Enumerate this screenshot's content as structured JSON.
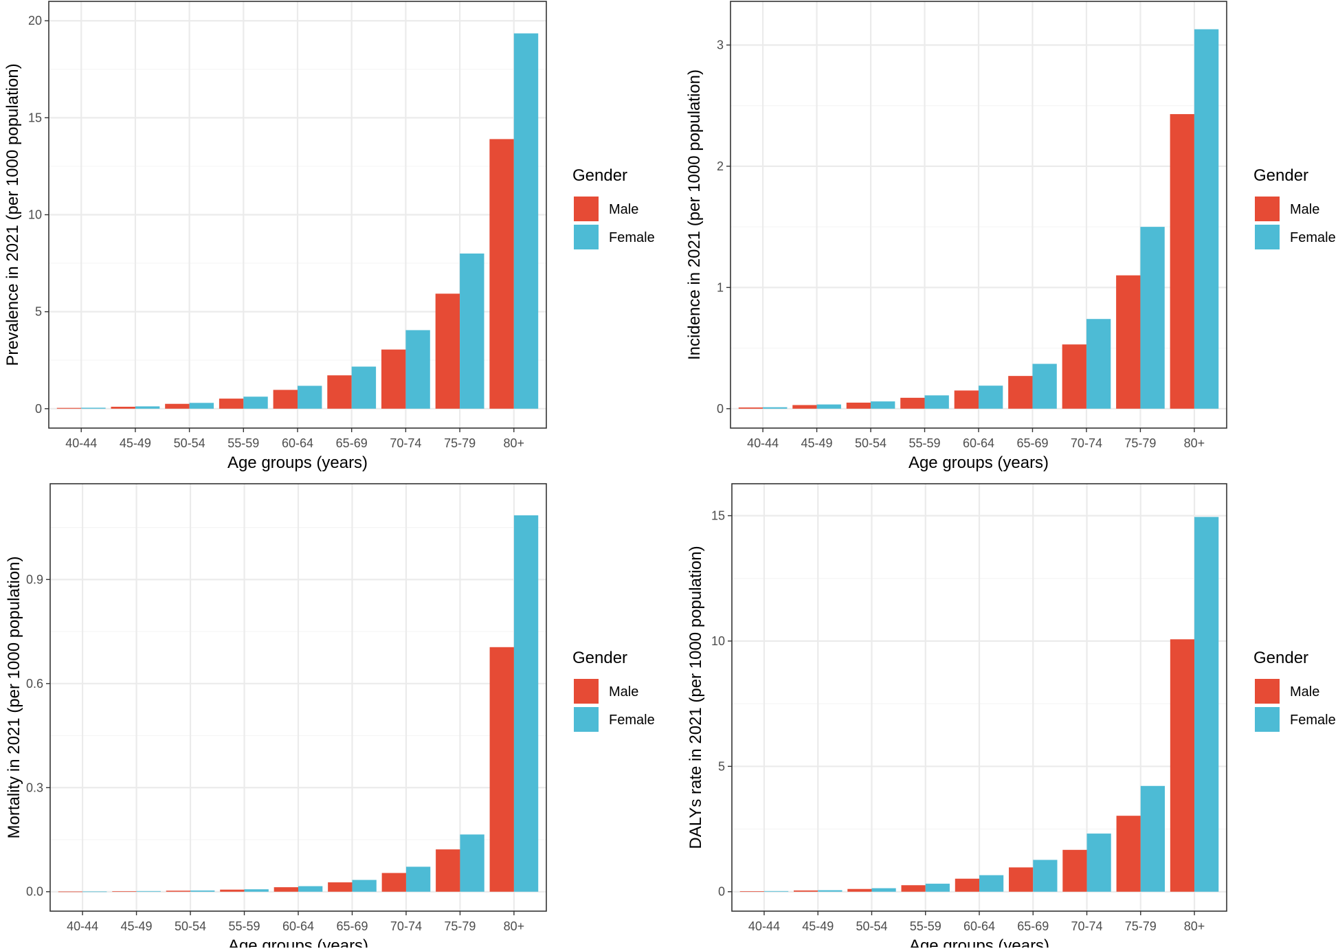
{
  "legend": {
    "title": "Gender",
    "entries": [
      "Male",
      "Female"
    ]
  },
  "colors": {
    "male": "#E64B35",
    "female": "#4DBBD5",
    "grid_major": "#EBEBEB",
    "grid_minor": "#F5F5F5",
    "panel_border": "#333333"
  },
  "chart_data": [
    {
      "type": "bar",
      "xlabel": "Age groups (years)",
      "ylabel": "Prevalence in 2021 (per 1000 population)",
      "categories": [
        "40-44",
        "45-49",
        "50-54",
        "55-59",
        "60-64",
        "65-69",
        "70-74",
        "75-79",
        "80+"
      ],
      "series": [
        {
          "name": "Male",
          "values": [
            0.04,
            0.1,
            0.25,
            0.52,
            0.97,
            1.72,
            3.05,
            5.93,
            13.9
          ]
        },
        {
          "name": "Female",
          "values": [
            0.05,
            0.12,
            0.3,
            0.62,
            1.18,
            2.17,
            4.05,
            8.0,
            19.35
          ]
        }
      ],
      "ylim": [
        0,
        20
      ],
      "yticks": [
        0,
        5,
        10,
        15,
        20
      ],
      "ytick_labels": [
        "0",
        "5",
        "10",
        "15",
        "20"
      ],
      "yminor": [
        2.5,
        7.5,
        12.5,
        17.5
      ]
    },
    {
      "type": "bar",
      "xlabel": "Age groups (years)",
      "ylabel": "Incidence in 2021 (per 1000 population)",
      "categories": [
        "40-44",
        "45-49",
        "50-54",
        "55-59",
        "60-64",
        "65-69",
        "70-74",
        "75-79",
        "80+"
      ],
      "series": [
        {
          "name": "Male",
          "values": [
            0.01,
            0.03,
            0.05,
            0.09,
            0.15,
            0.27,
            0.53,
            1.1,
            2.43
          ]
        },
        {
          "name": "Female",
          "values": [
            0.012,
            0.035,
            0.06,
            0.11,
            0.19,
            0.37,
            0.74,
            1.5,
            3.13
          ]
        }
      ],
      "ylim": [
        0,
        3.2
      ],
      "yticks": [
        0,
        1,
        2,
        3
      ],
      "ytick_labels": [
        "0",
        "1",
        "2",
        "3"
      ],
      "yminor": [
        0.5,
        1.5,
        2.5
      ]
    },
    {
      "type": "bar",
      "xlabel": "Age groups (years)",
      "ylabel": "Mortality in 2021 (per 1000 population)",
      "categories": [
        "40-44",
        "45-49",
        "50-54",
        "55-59",
        "60-64",
        "65-69",
        "70-74",
        "75-79",
        "80+"
      ],
      "series": [
        {
          "name": "Male",
          "values": [
            0.0005,
            0.0015,
            0.003,
            0.006,
            0.013,
            0.027,
            0.054,
            0.122,
            0.705
          ]
        },
        {
          "name": "Female",
          "values": [
            0.0006,
            0.0018,
            0.0035,
            0.007,
            0.016,
            0.034,
            0.072,
            0.165,
            1.085
          ]
        }
      ],
      "ylim": [
        0,
        1.12
      ],
      "yticks": [
        0,
        0.3,
        0.6,
        0.9
      ],
      "ytick_labels": [
        "0.0",
        "0.3",
        "0.6",
        "0.9"
      ],
      "yminor": [
        0.15,
        0.45,
        0.75,
        1.05
      ]
    },
    {
      "type": "bar",
      "xlabel": "Age groups (years)",
      "ylabel": "DALYs rate in 2021 (per 1000 population)",
      "categories": [
        "40-44",
        "45-49",
        "50-54",
        "55-59",
        "60-64",
        "65-69",
        "70-74",
        "75-79",
        "80+"
      ],
      "series": [
        {
          "name": "Male",
          "values": [
            0.02,
            0.05,
            0.11,
            0.26,
            0.52,
            0.97,
            1.67,
            3.03,
            10.07
          ]
        },
        {
          "name": "Female",
          "values": [
            0.025,
            0.06,
            0.14,
            0.32,
            0.66,
            1.27,
            2.32,
            4.22,
            14.95
          ]
        }
      ],
      "ylim": [
        0,
        15.5
      ],
      "yticks": [
        0,
        5,
        10,
        15
      ],
      "ytick_labels": [
        "0",
        "5",
        "10",
        "15"
      ],
      "yminor": [
        2.5,
        7.5,
        12.5
      ]
    }
  ]
}
